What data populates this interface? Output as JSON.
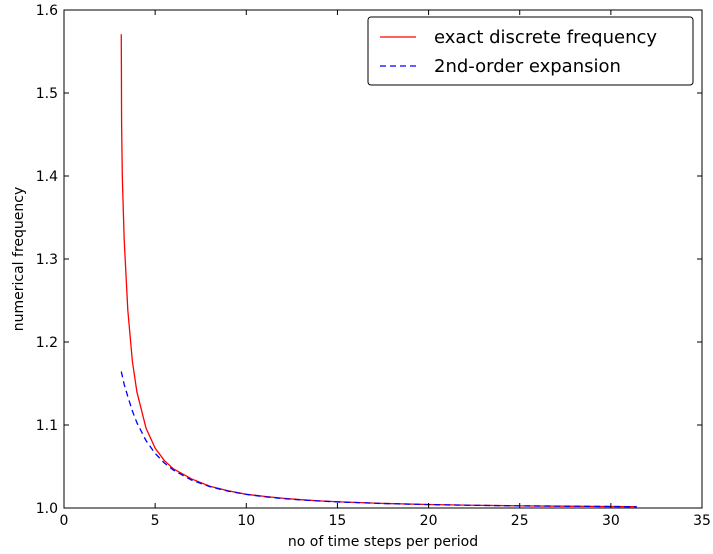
{
  "chart_data": {
    "type": "line",
    "title": "",
    "xlabel": "no of time steps per period",
    "ylabel": "numerical frequency",
    "xlim": [
      0,
      35
    ],
    "ylim": [
      1.0,
      1.6
    ],
    "x_ticks": [
      0,
      5,
      10,
      15,
      20,
      25,
      30,
      35
    ],
    "y_ticks": [
      1.0,
      1.1,
      1.2,
      1.3,
      1.4,
      1.5,
      1.6
    ],
    "x_tick_labels": [
      "0",
      "5",
      "10",
      "15",
      "20",
      "25",
      "30",
      "35"
    ],
    "y_tick_labels": [
      "1.0",
      "1.1",
      "1.2",
      "1.3",
      "1.4",
      "1.5",
      "1.6"
    ],
    "grid": false,
    "legend": {
      "placement": "top-right"
    },
    "series": [
      {
        "name": "exact discrete frequency",
        "color": "#ff0000",
        "dash": "solid",
        "x": [
          3.1416,
          3.16,
          3.2,
          3.3,
          3.5,
          3.75,
          4.0,
          4.5,
          5.0,
          5.5,
          6.0,
          7.0,
          8.0,
          9.0,
          10.0,
          11.0,
          12.0,
          13.0,
          14.0,
          15.0,
          17.5,
          20.0,
          22.5,
          25.0,
          27.5,
          30.0,
          31.4159
        ],
        "y": [
          1.5708,
          1.4618,
          1.3983,
          1.3242,
          1.2384,
          1.1769,
          1.1398,
          1.0962,
          1.0721,
          1.0573,
          1.0472,
          1.035,
          1.0262,
          1.0208,
          1.0165,
          1.014,
          1.0118,
          1.01,
          1.0086,
          1.0075,
          1.0055,
          1.0042,
          1.0033,
          1.0026,
          1.0022,
          1.0018,
          1.0017
        ]
      },
      {
        "name": "2nd-order expansion",
        "color": "#0000ff",
        "dash": "dashed",
        "x": [
          3.1416,
          3.3,
          3.5,
          3.75,
          4.0,
          4.5,
          5.0,
          5.5,
          6.0,
          7.0,
          8.0,
          9.0,
          10.0,
          11.0,
          12.0,
          13.0,
          14.0,
          15.0,
          17.5,
          20.0,
          22.5,
          25.0,
          27.5,
          30.0,
          31.4159
        ],
        "y": [
          1.1645,
          1.1491,
          1.1343,
          1.117,
          1.1028,
          1.0812,
          1.0658,
          1.0544,
          1.0457,
          1.0336,
          1.0257,
          1.0203,
          1.0164,
          1.0136,
          1.0114,
          1.0097,
          1.0084,
          1.0073,
          1.0054,
          1.0041,
          1.0032,
          1.0026,
          1.0022,
          1.0018,
          1.0016
        ]
      }
    ]
  }
}
